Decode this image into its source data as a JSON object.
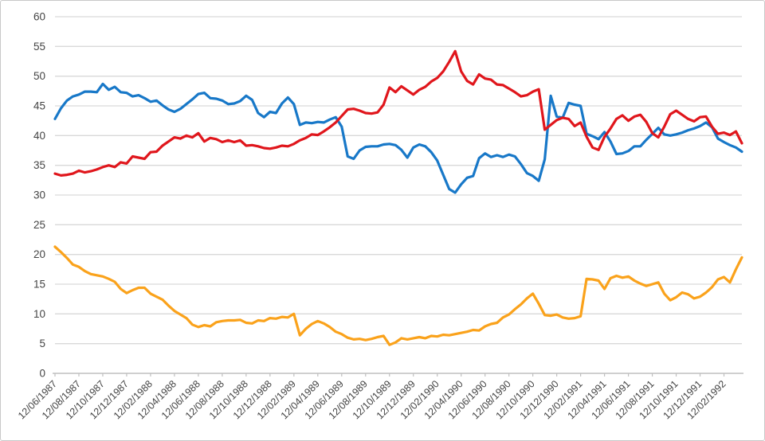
{
  "chart_data": {
    "type": "line",
    "title": "",
    "legend": "none",
    "grid": true,
    "background": "#ffffff",
    "frame_border_color": "#c8c8c8",
    "grid_color": "#d9d9d9",
    "axis_line_color": "#bfbfbf",
    "axis_text_color": "#444444",
    "y_axis": {
      "min": 0,
      "max": 60,
      "step": 5,
      "tick_labels": [
        "0",
        "5",
        "10",
        "15",
        "20",
        "25",
        "30",
        "35",
        "40",
        "45",
        "50",
        "55",
        "60"
      ]
    },
    "x_axis": {
      "tick_labels": [
        "12/06/1987",
        "12/08/1987",
        "12/10/1987",
        "12/12/1987",
        "12/02/1988",
        "12/04/1988",
        "12/06/1988",
        "12/08/1988",
        "12/10/1988",
        "12/12/1988",
        "12/02/1989",
        "12/04/1989",
        "12/06/1989",
        "12/08/1989",
        "12/10/1989",
        "12/12/1989",
        "12/02/1990",
        "12/04/1990",
        "12/06/1990",
        "12/08/1990",
        "12/10/1990",
        "12/12/1990",
        "12/02/1991",
        "12/04/1991",
        "12/06/1991",
        "12/08/1991",
        "12/10/1991",
        "12/12/1991",
        "12/02/1992"
      ],
      "months_per_tick": 2,
      "samples_per_month": 2
    },
    "series": [
      {
        "name": "series-blue",
        "color": "#1878C8",
        "values": [
          42.8,
          44.6,
          45.9,
          46.6,
          46.9,
          47.4,
          47.4,
          47.3,
          48.7,
          47.7,
          48.2,
          47.3,
          47.2,
          46.6,
          46.8,
          46.3,
          45.7,
          45.9,
          45.1,
          44.4,
          44.0,
          44.5,
          45.3,
          46.1,
          47.0,
          47.2,
          46.3,
          46.2,
          45.9,
          45.3,
          45.4,
          45.8,
          46.7,
          46.0,
          43.8,
          43.1,
          44.0,
          43.8,
          45.4,
          46.4,
          45.3,
          41.8,
          42.2,
          42.1,
          42.3,
          42.2,
          42.7,
          43.1,
          41.5,
          36.5,
          36.1,
          37.5,
          38.1,
          38.2,
          38.2,
          38.5,
          38.6,
          38.4,
          37.6,
          36.3,
          38.0,
          38.5,
          38.2,
          37.2,
          35.8,
          33.4,
          31.0,
          30.4,
          31.8,
          32.9,
          33.2,
          36.2,
          37.0,
          36.4,
          36.7,
          36.4,
          36.8,
          36.5,
          35.2,
          33.7,
          33.2,
          32.4,
          36.0,
          46.7,
          43.2,
          43.0,
          45.5,
          45.2,
          45.0,
          40.3,
          39.9,
          39.4,
          40.6,
          39.0,
          36.9,
          37.0,
          37.4,
          38.2,
          38.2,
          39.3,
          40.3,
          41.3,
          40.2,
          40.0,
          40.2,
          40.5,
          40.9,
          41.2,
          41.6,
          42.2,
          41.4,
          39.5,
          38.9,
          38.4,
          38.0,
          37.3
        ]
      },
      {
        "name": "series-red",
        "color": "#E0161C",
        "values": [
          33.6,
          33.3,
          33.4,
          33.6,
          34.1,
          33.8,
          34.0,
          34.3,
          34.7,
          35.0,
          34.7,
          35.5,
          35.3,
          36.5,
          36.3,
          36.1,
          37.2,
          37.3,
          38.3,
          39.0,
          39.7,
          39.5,
          40.0,
          39.7,
          40.4,
          39.0,
          39.6,
          39.4,
          38.9,
          39.2,
          38.9,
          39.2,
          38.3,
          38.4,
          38.2,
          37.9,
          37.8,
          38.0,
          38.3,
          38.2,
          38.6,
          39.2,
          39.6,
          40.2,
          40.1,
          40.7,
          41.4,
          42.2,
          43.3,
          44.4,
          44.5,
          44.2,
          43.8,
          43.7,
          43.9,
          45.2,
          48.1,
          47.3,
          48.3,
          47.6,
          46.9,
          47.7,
          48.2,
          49.1,
          49.7,
          50.8,
          52.4,
          54.2,
          50.8,
          49.2,
          48.6,
          50.3,
          49.6,
          49.4,
          48.6,
          48.5,
          47.9,
          47.3,
          46.6,
          46.8,
          47.4,
          47.8,
          41.0,
          41.8,
          42.6,
          43.0,
          42.8,
          41.6,
          42.2,
          39.8,
          38.0,
          37.6,
          39.8,
          41.2,
          42.8,
          43.4,
          42.5,
          43.2,
          43.5,
          42.3,
          40.4,
          39.7,
          41.5,
          43.6,
          44.2,
          43.5,
          42.8,
          42.4,
          43.1,
          43.2,
          41.5,
          40.3,
          40.5,
          40.1,
          40.7,
          38.7
        ]
      },
      {
        "name": "series-orange",
        "color": "#FAA21B",
        "values": [
          21.3,
          20.4,
          19.4,
          18.3,
          17.9,
          17.2,
          16.7,
          16.5,
          16.3,
          15.9,
          15.4,
          14.2,
          13.5,
          14.0,
          14.4,
          14.4,
          13.4,
          12.9,
          12.4,
          11.4,
          10.5,
          9.9,
          9.3,
          8.2,
          7.8,
          8.1,
          7.9,
          8.6,
          8.8,
          8.9,
          8.9,
          9.0,
          8.5,
          8.4,
          8.9,
          8.8,
          9.3,
          9.2,
          9.5,
          9.4,
          10.0,
          6.4,
          7.5,
          8.3,
          8.8,
          8.4,
          7.8,
          7.0,
          6.6,
          6.0,
          5.7,
          5.8,
          5.6,
          5.8,
          6.1,
          6.3,
          4.8,
          5.2,
          5.9,
          5.7,
          5.9,
          6.1,
          5.9,
          6.3,
          6.2,
          6.5,
          6.4,
          6.6,
          6.8,
          7.0,
          7.3,
          7.2,
          7.9,
          8.3,
          8.5,
          9.4,
          9.9,
          10.8,
          11.6,
          12.6,
          13.4,
          11.7,
          9.8,
          9.7,
          9.9,
          9.4,
          9.2,
          9.3,
          9.6,
          15.9,
          15.8,
          15.6,
          14.2,
          16.0,
          16.4,
          16.1,
          16.3,
          15.6,
          15.1,
          14.7,
          15.0,
          15.3,
          13.4,
          12.3,
          12.8,
          13.6,
          13.3,
          12.6,
          12.9,
          13.6,
          14.5,
          15.8,
          16.2,
          15.3,
          17.5,
          19.5
        ]
      }
    ]
  }
}
